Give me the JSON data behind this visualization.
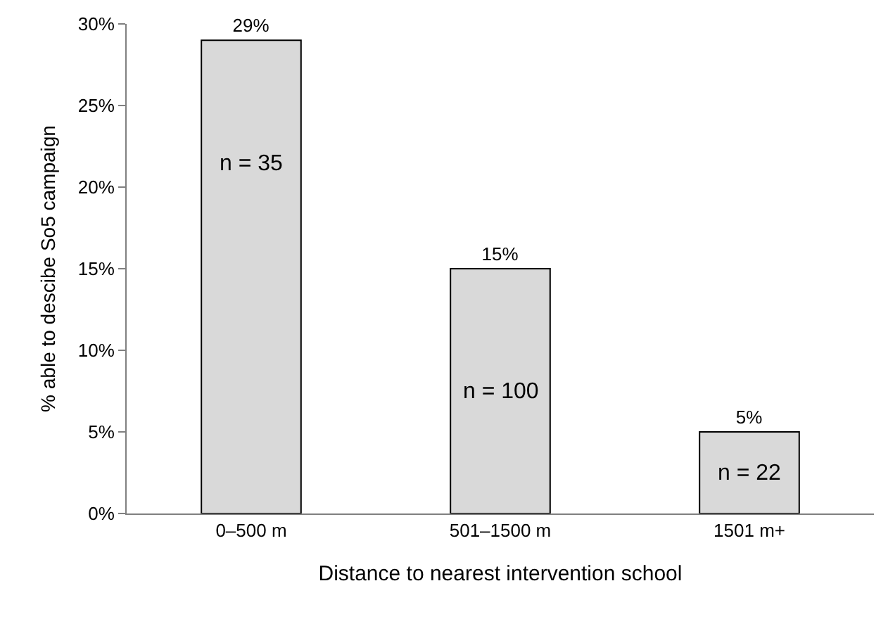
{
  "chart_data": {
    "type": "bar",
    "xlabel": "Distance to nearest intervention school",
    "ylabel": "% able to descibe So5 campaign",
    "categories": [
      "0–500 m",
      "501–1500 m",
      "1501 m+"
    ],
    "values": [
      29,
      15,
      5
    ],
    "value_labels": [
      "29%",
      "15%",
      "5%"
    ],
    "color": "#d9d9d9",
    "ylim": [
      0,
      30
    ],
    "yticks": [
      {
        "value": 0,
        "label": "0%"
      },
      {
        "value": 5,
        "label": "5%"
      },
      {
        "value": 10,
        "label": "10%"
      },
      {
        "value": 15,
        "label": "15%"
      },
      {
        "value": 20,
        "label": "20%"
      },
      {
        "value": 25,
        "label": "25%"
      },
      {
        "value": 30,
        "label": "30%"
      }
    ],
    "grid": false,
    "legend": false,
    "annotations": [
      "n = 35",
      "n = 100",
      "n = 22"
    ]
  }
}
